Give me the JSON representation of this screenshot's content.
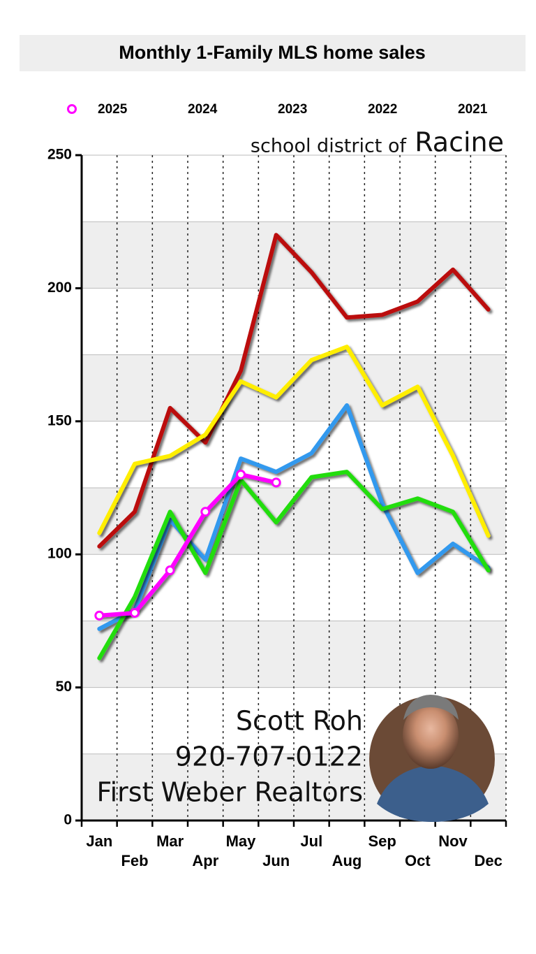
{
  "chart_data": {
    "type": "line",
    "title": "Monthly 1-Family MLS home sales",
    "annotations": [
      "school district of",
      "Racine",
      "Scott Roh",
      "920-707-0122",
      "First Weber Realtors"
    ],
    "categories": [
      "Jan",
      "Feb",
      "Mar",
      "Apr",
      "May",
      "Jun",
      "Jul",
      "Aug",
      "Sep",
      "Oct",
      "Nov",
      "Dec"
    ],
    "series": [
      {
        "name": "2025",
        "color": "#ff00ff",
        "markers": true,
        "values": [
          77,
          78,
          94,
          116,
          130,
          127,
          null,
          null,
          null,
          null,
          null,
          null
        ]
      },
      {
        "name": "2024",
        "color": "#22dd11",
        "values": [
          61,
          84,
          116,
          93,
          128,
          112,
          129,
          131,
          117,
          121,
          116,
          94
        ]
      },
      {
        "name": "2023",
        "color": "#3399ee",
        "values": [
          72,
          79,
          113,
          98,
          136,
          131,
          138,
          156,
          119,
          93,
          104,
          95
        ]
      },
      {
        "name": "2022",
        "color": "#ffee00",
        "values": [
          108,
          134,
          137,
          145,
          165,
          159,
          173,
          178,
          156,
          163,
          137,
          107
        ]
      },
      {
        "name": "2021",
        "color": "#bb1111",
        "values": [
          103,
          116,
          155,
          142,
          169,
          220,
          206,
          189,
          190,
          195,
          207,
          192
        ]
      }
    ],
    "ylim": [
      0,
      250
    ],
    "yticks": [
      0,
      50,
      100,
      150,
      200,
      250
    ],
    "grid": true
  }
}
